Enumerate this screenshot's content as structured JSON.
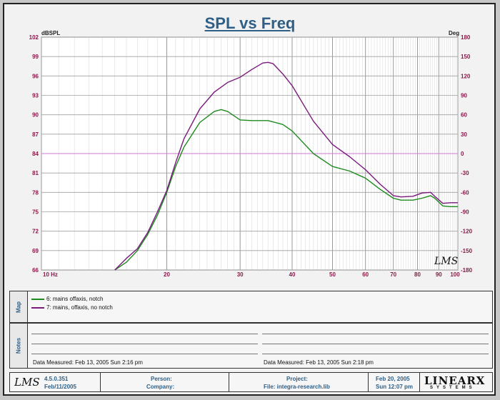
{
  "title": "SPL vs Freq",
  "chart_data": {
    "type": "line",
    "title": "SPL vs Freq",
    "ylabel_left": "dBSPL",
    "ylabel_right": "Deg",
    "xscale": "log",
    "xlim": [
      10,
      100
    ],
    "ylim": [
      66,
      102
    ],
    "y2lim": [
      -180,
      180
    ],
    "x_ticks": [
      "10 Hz",
      "20",
      "30",
      "40",
      "50",
      "60",
      "70",
      "80",
      "90",
      "100"
    ],
    "y_ticks_left": [
      "102",
      "99",
      "96",
      "93",
      "90",
      "87",
      "84",
      "81",
      "78",
      "75",
      "72",
      "69",
      "66"
    ],
    "y_ticks_right": [
      "180",
      "150",
      "120",
      "90",
      "60",
      "30",
      "0",
      "-30",
      "-60",
      "-90",
      "-120",
      "-150",
      "-180"
    ],
    "grid": true,
    "reference_line": {
      "y2": 0,
      "color": "#d27ad2"
    },
    "series": [
      {
        "name": "6: mains offaxis, notch",
        "color": "#1e8a1e",
        "x": [
          15,
          16,
          17,
          18,
          19,
          20,
          21,
          22,
          24,
          26,
          27,
          28,
          30,
          32,
          35,
          38,
          40,
          45,
          50,
          55,
          60,
          65,
          70,
          73,
          78,
          82,
          86,
          88,
          92,
          96,
          100
        ],
        "y": [
          66,
          67.2,
          69,
          71.5,
          74.5,
          78,
          82,
          85,
          88.8,
          90.5,
          90.8,
          90.5,
          89.2,
          89.1,
          89.1,
          88.5,
          87.5,
          84,
          82,
          81.3,
          80.2,
          78.5,
          77.1,
          76.8,
          76.8,
          77.1,
          77.5,
          77.1,
          75.9,
          75.8,
          75.8
        ]
      },
      {
        "name": "7: mains, offaxis, no notch",
        "color": "#7a1a7e",
        "x": [
          15,
          16,
          17,
          18,
          19,
          20,
          21,
          22,
          24,
          26,
          28,
          30,
          32,
          34,
          35,
          36,
          38,
          40,
          45,
          50,
          55,
          60,
          65,
          70,
          73,
          78,
          82,
          86,
          88,
          92,
          96,
          100
        ],
        "y": [
          66,
          67.8,
          69.3,
          71.8,
          75,
          78.3,
          82.6,
          86.3,
          90.9,
          93.5,
          95,
          95.8,
          97,
          98,
          98.1,
          97.9,
          96.3,
          94.5,
          89,
          85.4,
          83.5,
          81.5,
          79.3,
          77.5,
          77.3,
          77.4,
          77.9,
          78,
          77.4,
          76.3,
          76.4,
          76.4
        ]
      }
    ],
    "annotation": "LMS"
  },
  "map": {
    "tab_label": "Map",
    "legend": [
      {
        "label": "6: mains offaxis, notch",
        "color": "#1e8a1e"
      },
      {
        "label": "7: mains, offaxis, no notch",
        "color": "#7a1a7e"
      }
    ]
  },
  "notes": {
    "tab_label": "Notes",
    "measured_left": "Data Measured: Feb 13, 2005  Sun  2:16 pm",
    "measured_right": "Data Measured: Feb 13, 2005  Sun  2:18 pm"
  },
  "footer": {
    "logo": "LMS",
    "version": "4.5.0.351",
    "version_date": "Feb/11/2005",
    "person_label": "Person:",
    "company_label": "Company:",
    "project_label": "Project:",
    "file_label": "File: integra-research.lib",
    "date": "Feb 20, 2005",
    "time": "Sun 12:07 pm",
    "brand": "LINEARX",
    "brand_sub": "SYSTEMS"
  }
}
